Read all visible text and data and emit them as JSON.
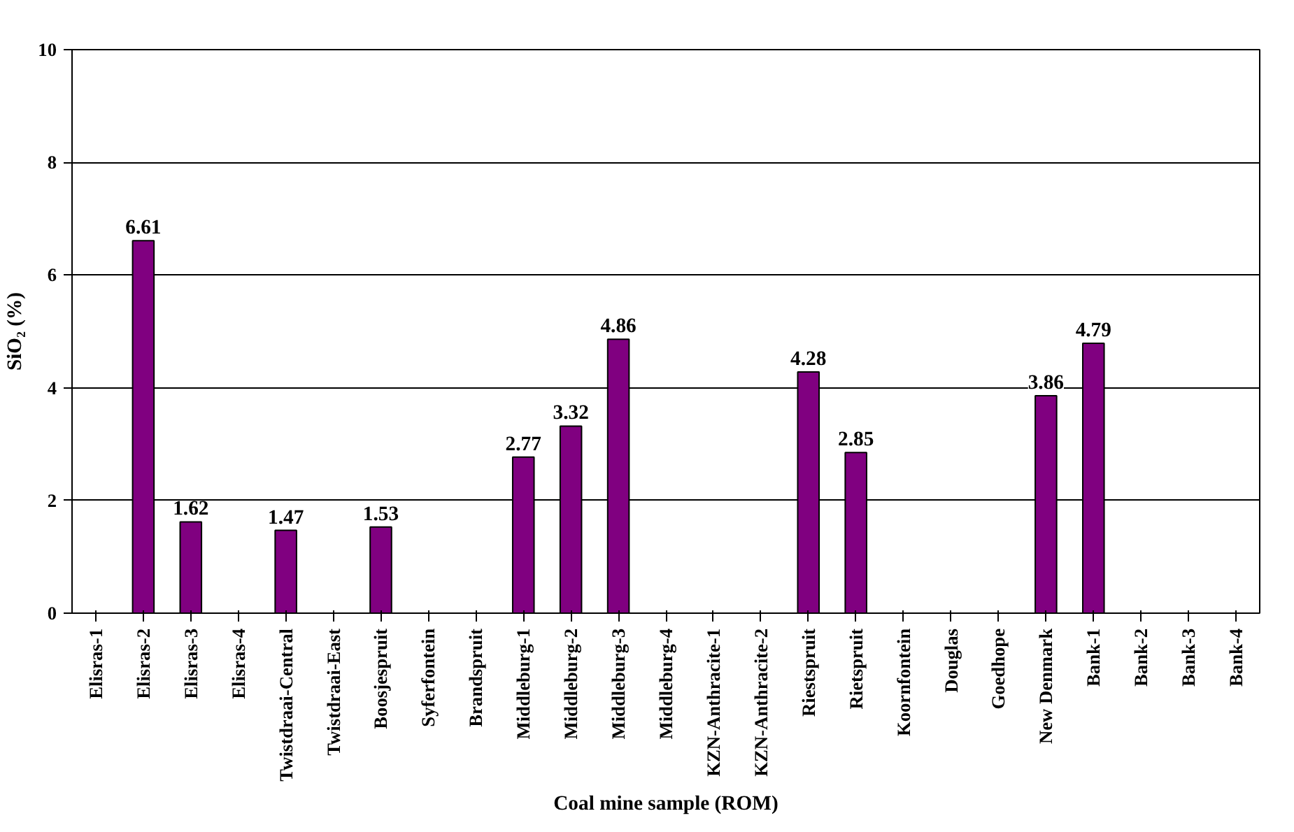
{
  "chart_data": {
    "type": "bar",
    "xlabel": "Coal mine sample (ROM)",
    "ylabel": "SiO₂ (%)",
    "categories": [
      "Elisras-1",
      "Elisras-2",
      "Elisras-3",
      "Elisras-4",
      "Twistdraai-Central",
      "Twistdraai-East",
      "Boosjespruit",
      "Syferfontein",
      "Brandspruit",
      "Middleburg-1",
      "Middleburg-2",
      "Middleburg-3",
      "Middleburg-4",
      "KZN-Anthracite-1",
      "KZN-Anthracite-2",
      "Riestspruit",
      "Rietspruit",
      "Koornfontein",
      "Douglas",
      "Goedhope",
      "New Denmark",
      "Bank-1",
      "Bank-2",
      "Bank-3",
      "Bank-4"
    ],
    "values": [
      null,
      6.61,
      1.62,
      null,
      1.47,
      null,
      1.53,
      null,
      null,
      2.77,
      3.32,
      4.86,
      null,
      null,
      null,
      4.28,
      2.85,
      null,
      null,
      null,
      3.86,
      4.79,
      null,
      null,
      null
    ],
    "color": "#800080",
    "ylim": [
      0,
      10
    ],
    "yticks": [
      0,
      2,
      4,
      6,
      8,
      10
    ],
    "grid": "y",
    "data_labels": true
  }
}
